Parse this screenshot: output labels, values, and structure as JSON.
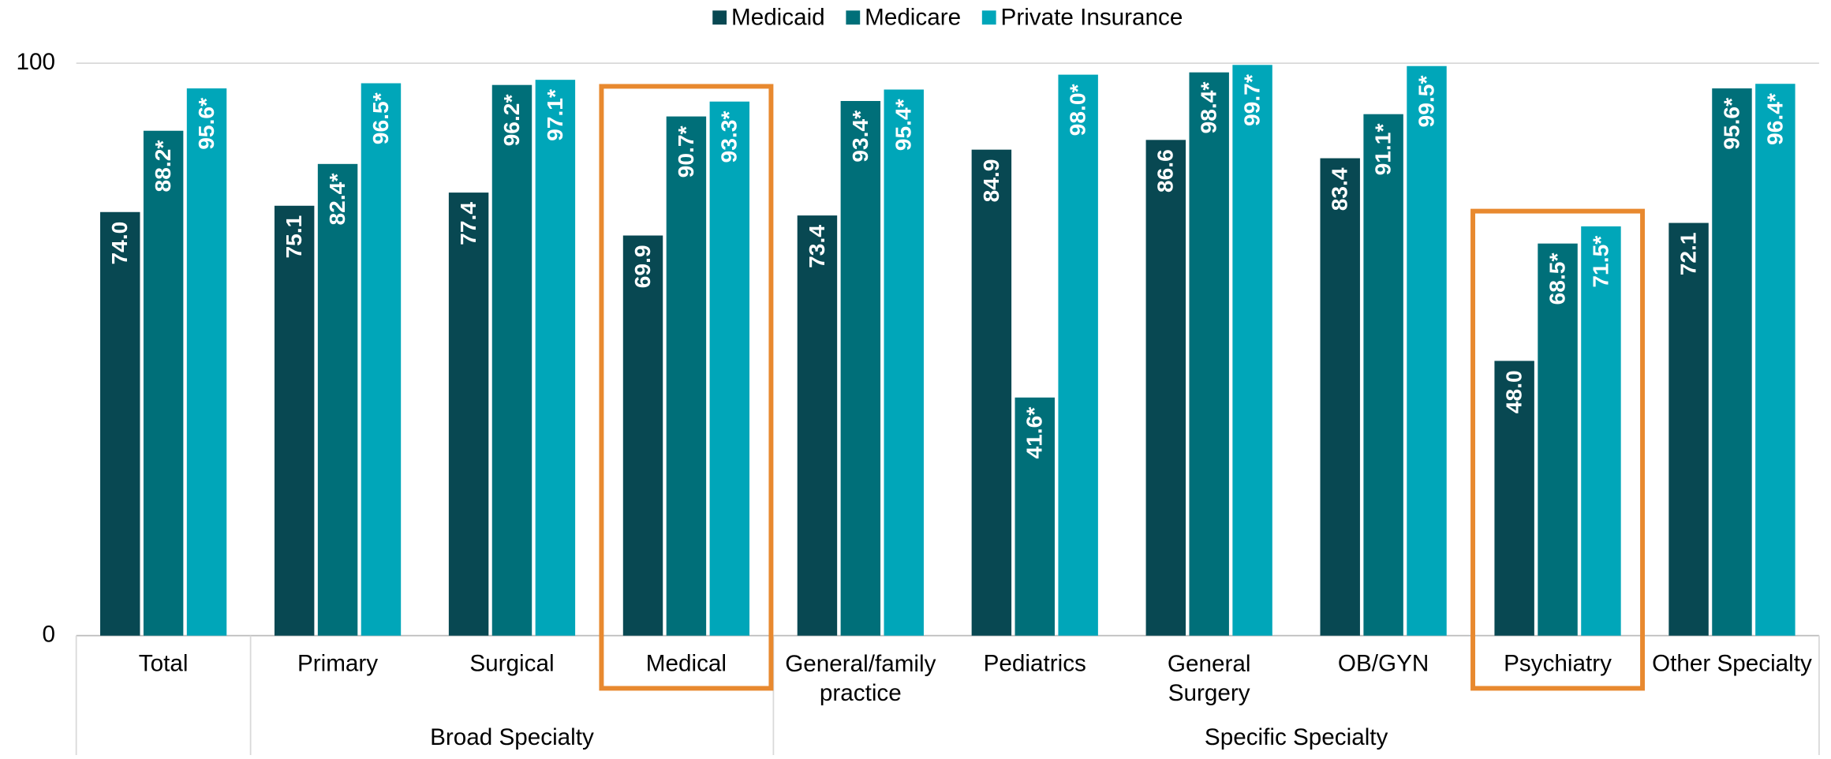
{
  "chart_data": {
    "type": "bar",
    "categories": [
      "Total",
      "Primary",
      "Surgical",
      "Medical",
      "General/family\npractice",
      "Pediatrics",
      "General\nSurgery",
      "OB/GYN",
      "Psychiatry",
      "Other Specialty"
    ],
    "series": [
      {
        "name": "Medicaid",
        "color": "#084852",
        "values": [
          74.0,
          75.1,
          77.4,
          69.9,
          73.4,
          84.9,
          86.6,
          83.4,
          48.0,
          72.1
        ],
        "value_labels": [
          "74.0",
          "75.1",
          "77.4",
          "69.9",
          "73.4",
          "84.9",
          "86.6",
          "83.4",
          "48.0",
          "72.1"
        ]
      },
      {
        "name": "Medicare",
        "color": "#006f79",
        "values": [
          88.2,
          82.4,
          96.2,
          90.7,
          93.4,
          41.6,
          98.4,
          91.1,
          68.5,
          95.6
        ],
        "value_labels": [
          "88.2*",
          "82.4*",
          "96.2*",
          "90.7*",
          "93.4*",
          "41.6*",
          "98.4*",
          "91.1*",
          "68.5*",
          "95.6*"
        ]
      },
      {
        "name": "Private Insurance",
        "color": "#00a6b9",
        "values": [
          95.6,
          96.5,
          97.1,
          93.3,
          95.4,
          98.0,
          99.7,
          99.5,
          71.5,
          96.4
        ],
        "value_labels": [
          "95.6*",
          "96.5*",
          "97.1*",
          "93.3*",
          "95.4*",
          "98.0*",
          "99.7*",
          "99.5*",
          "71.5*",
          "96.4*"
        ]
      }
    ],
    "groups": [
      {
        "name": "Broad Specialty",
        "first": 1,
        "last": 3
      },
      {
        "name": "Specific Specialty",
        "first": 4,
        "last": 9
      }
    ],
    "highlight": [
      3,
      8
    ],
    "highlight_color": "#e8892f",
    "ylim": [
      0,
      100
    ],
    "yticks": [
      0,
      100
    ],
    "legend": "top"
  }
}
